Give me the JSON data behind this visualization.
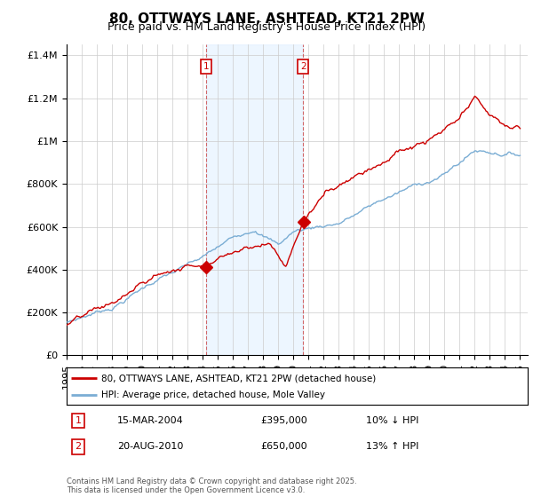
{
  "title": "80, OTTWAYS LANE, ASHTEAD, KT21 2PW",
  "subtitle": "Price paid vs. HM Land Registry's House Price Index (HPI)",
  "ytick_values": [
    0,
    200000,
    400000,
    600000,
    800000,
    1000000,
    1200000,
    1400000
  ],
  "ylim": [
    0,
    1450000
  ],
  "xlim_start": 1995.0,
  "xlim_end": 2025.5,
  "purchase1_year": 2004.21,
  "purchase1_price": 395000,
  "purchase1_date": "15-MAR-2004",
  "purchase1_hpi_diff": "10% ↓ HPI",
  "purchase2_year": 2010.64,
  "purchase2_price": 650000,
  "purchase2_date": "20-AUG-2010",
  "purchase2_hpi_diff": "13% ↑ HPI",
  "legend_line1": "80, OTTWAYS LANE, ASHTEAD, KT21 2PW (detached house)",
  "legend_line2": "HPI: Average price, detached house, Mole Valley",
  "footer": "Contains HM Land Registry data © Crown copyright and database right 2025.\nThis data is licensed under the Open Government Licence v3.0.",
  "line_color_red": "#cc0000",
  "line_color_blue": "#7aadd4",
  "shade_color": "#ddeeff",
  "bg_color": "#ffffff",
  "grid_color": "#cccccc",
  "title_fontsize": 11,
  "subtitle_fontsize": 9,
  "tick_fontsize": 8
}
